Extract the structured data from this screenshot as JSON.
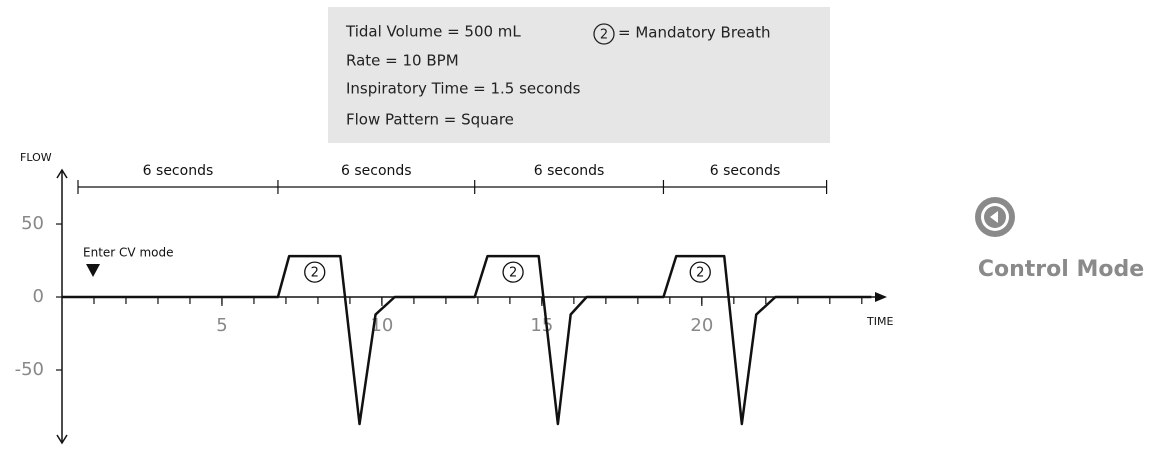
{
  "info_box": {
    "lines": [
      "Tidal Volume = 500 mL",
      "Rate = 10 BPM",
      "Inspiratory Time = 1.5 seconds",
      "Flow Pattern = Square"
    ],
    "legend_symbol": "2",
    "legend_text": "= Mandatory Breath"
  },
  "chart_data": {
    "type": "line",
    "ylabel": "FLOW",
    "xlabel": "TIME",
    "xlim": [
      0,
      25.6
    ],
    "ylim": [
      -100,
      87
    ],
    "xticks": [
      5,
      10,
      15,
      20
    ],
    "xminor_ticks": [
      1,
      2,
      3,
      4,
      5,
      6,
      7,
      8,
      9,
      10,
      11,
      12,
      13,
      14,
      15,
      16,
      17,
      18,
      19,
      20,
      21,
      22,
      23,
      24,
      25
    ],
    "yticks": [
      -50,
      0,
      50
    ],
    "series": [
      {
        "name": "Flow",
        "color": "#111111",
        "x": [
          0,
          6.75,
          7.1,
          8.7,
          9.3,
          9.8,
          10.4,
          12.9,
          13.3,
          14.9,
          15.5,
          15.9,
          16.4,
          18.8,
          19.2,
          20.7,
          21.25,
          21.7,
          22.3,
          25.3
        ],
        "values": [
          0,
          0,
          28,
          28,
          -87,
          -12,
          0,
          0,
          28,
          28,
          -87,
          -12,
          0,
          0,
          28,
          28,
          -87,
          -12,
          0,
          0
        ]
      }
    ],
    "breath_markers": [
      "2",
      "2",
      "2"
    ],
    "intervals": {
      "labels": [
        "6 seconds",
        "6 seconds",
        "6 seconds",
        "6 seconds"
      ],
      "bounds": [
        0.5,
        6.75,
        12.9,
        18.8,
        23.9
      ]
    },
    "annotation": {
      "text": "Enter CV mode",
      "x": 0.97
    }
  },
  "button": {
    "label": "Control Mode"
  }
}
